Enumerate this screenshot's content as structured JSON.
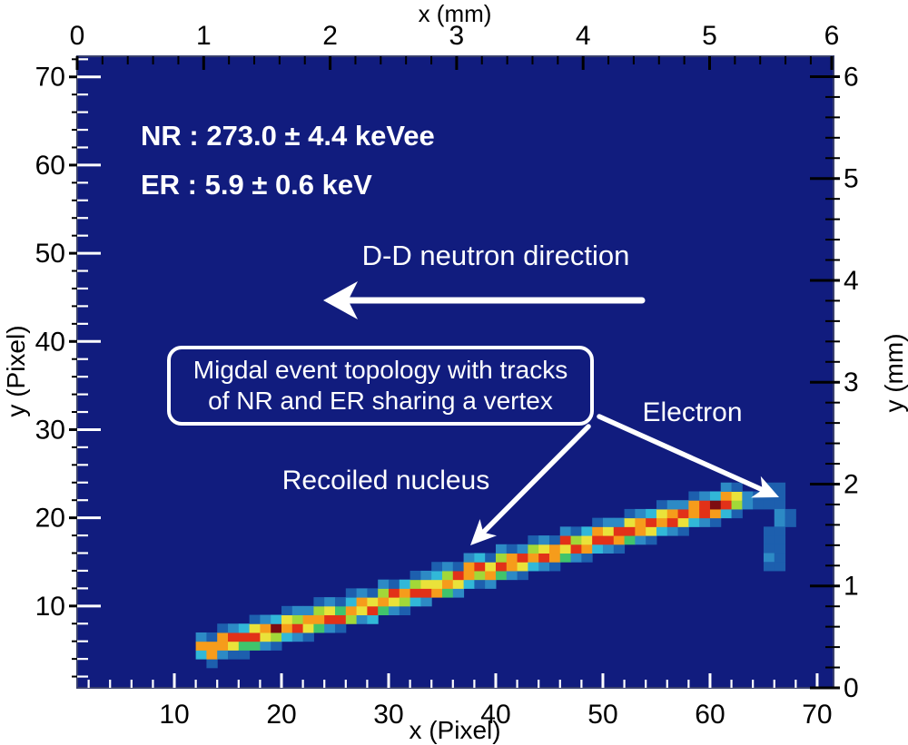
{
  "annotations": {
    "nr_energy": "NR : 273.0 ± 4.4 keVee",
    "er_energy": "ER : 5.9 ± 0.6 keV",
    "neutron_direction": "D-D neutron direction",
    "topology_line1": "Migdal event topology with tracks",
    "topology_line2": "of NR and ER sharing a vertex",
    "recoiled_nucleus": "Recoiled nucleus",
    "electron": "Electron"
  },
  "chart_data": {
    "type": "heatmap",
    "description": "CCD camera image of a Migdal-effect candidate event: a bright nuclear-recoil (NR) track and a faint electron-recoil (ER) track sharing a vertex, on a dark blue background.",
    "plot_bg": "#111c7e",
    "frame_edge": "#39406e",
    "tick_white": "#ffffff",
    "tick_black": "#000000",
    "annotation_color": "#ffffff",
    "palette": [
      "#173e96",
      "#1d5fae",
      "#2d8ac5",
      "#31b8d8",
      "#40c46c",
      "#a2d838",
      "#eae23a",
      "#f69c1b",
      "#e23118",
      "#7d0d11"
    ],
    "axes": {
      "top": {
        "title": "x (mm)",
        "majors": [
          0,
          1,
          2,
          3,
          4,
          5,
          6
        ],
        "range": [
          0,
          5.98
        ],
        "minor_step": 0.2
      },
      "bottom": {
        "title": "x (Pixel)",
        "majors": [
          10,
          20,
          30,
          40,
          50,
          60,
          70
        ],
        "range": [
          0.93,
          71.53
        ],
        "minor_step": 2
      },
      "left": {
        "title": "y (Pixel)",
        "majors": [
          10,
          20,
          30,
          40,
          50,
          60,
          70
        ],
        "range": [
          0.72,
          72.34
        ],
        "minor_step": 2
      },
      "right": {
        "title": "y (mm)",
        "majors": [
          0,
          1,
          2,
          3,
          4,
          5,
          6
        ],
        "range": [
          0,
          6.2
        ],
        "minor_step": 0.2
      }
    },
    "nr_track_columns": [
      [
        12,
        4,
        [
          4,
          8,
          3
        ]
      ],
      [
        13,
        3,
        [
          2,
          8,
          8,
          2
        ]
      ],
      [
        14,
        4,
        [
          3,
          8,
          8,
          2
        ]
      ],
      [
        15,
        4,
        [
          2,
          7,
          9,
          3
        ]
      ],
      [
        16,
        4,
        [
          2,
          5,
          9,
          4
        ]
      ],
      [
        17,
        5,
        [
          5,
          9,
          7,
          2
        ]
      ],
      [
        18,
        5,
        [
          3,
          7,
          8,
          3
        ]
      ],
      [
        19,
        5,
        [
          2,
          6,
          10,
          4
        ]
      ],
      [
        20,
        6,
        [
          4,
          8,
          7,
          2
        ]
      ],
      [
        21,
        6,
        [
          3,
          9,
          6,
          3
        ]
      ],
      [
        22,
        6,
        [
          2,
          7,
          8,
          3
        ]
      ],
      [
        23,
        7,
        [
          5,
          8,
          6,
          2
        ]
      ],
      [
        24,
        7,
        [
          3,
          9,
          7,
          3
        ]
      ],
      [
        25,
        7,
        [
          2,
          9,
          5,
          2
        ]
      ],
      [
        26,
        8,
        [
          6,
          8,
          4,
          2
        ]
      ],
      [
        27,
        8,
        [
          3,
          7,
          8,
          3
        ]
      ],
      [
        28,
        8,
        [
          4,
          9,
          7,
          2
        ]
      ],
      [
        29,
        9,
        [
          5,
          8,
          6,
          3
        ]
      ],
      [
        30,
        9,
        [
          3,
          7,
          9,
          2
        ]
      ],
      [
        31,
        9,
        [
          2,
          6,
          8,
          4
        ]
      ],
      [
        32,
        10,
        [
          4,
          9,
          6,
          2
        ]
      ],
      [
        33,
        10,
        [
          3,
          9,
          7,
          3
        ]
      ],
      [
        34,
        11,
        [
          8,
          7,
          4,
          2
        ]
      ],
      [
        35,
        11,
        [
          5,
          8,
          6,
          3
        ]
      ],
      [
        36,
        11,
        [
          3,
          7,
          9,
          2
        ]
      ],
      [
        37,
        12,
        [
          4,
          8,
          8,
          3
        ]
      ],
      [
        38,
        12,
        [
          2,
          6,
          9,
          4
        ]
      ],
      [
        39,
        12,
        [
          3,
          8,
          7,
          2
        ]
      ],
      [
        40,
        13,
        [
          5,
          9,
          6,
          3
        ]
      ],
      [
        41,
        13,
        [
          3,
          8,
          8,
          2
        ]
      ],
      [
        42,
        13,
        [
          2,
          7,
          9,
          3
        ]
      ],
      [
        43,
        14,
        [
          4,
          8,
          6,
          2
        ]
      ],
      [
        44,
        14,
        [
          3,
          9,
          7,
          3
        ]
      ],
      [
        45,
        14,
        [
          2,
          8,
          8,
          2
        ]
      ],
      [
        46,
        15,
        [
          5,
          7,
          9,
          3
        ]
      ],
      [
        47,
        15,
        [
          3,
          9,
          6,
          2
        ]
      ],
      [
        48,
        15,
        [
          2,
          8,
          7,
          4
        ]
      ],
      [
        49,
        16,
        [
          4,
          9,
          8,
          2
        ]
      ],
      [
        50,
        16,
        [
          3,
          9,
          7,
          3
        ]
      ],
      [
        51,
        16,
        [
          2,
          8,
          9,
          3
        ]
      ],
      [
        52,
        17,
        [
          5,
          9,
          7,
          2
        ]
      ],
      [
        53,
        17,
        [
          3,
          8,
          8,
          3
        ]
      ],
      [
        54,
        17,
        [
          2,
          7,
          9,
          4
        ]
      ],
      [
        55,
        18,
        [
          4,
          8,
          7,
          2
        ]
      ],
      [
        56,
        18,
        [
          3,
          9,
          8,
          3
        ]
      ],
      [
        57,
        18,
        [
          2,
          7,
          9,
          3
        ]
      ],
      [
        58,
        19,
        [
          4,
          8,
          8,
          2
        ]
      ],
      [
        59,
        19,
        [
          3,
          9,
          9,
          3
        ]
      ],
      [
        60,
        19,
        [
          2,
          8,
          10,
          4
        ]
      ],
      [
        61,
        20,
        [
          4,
          9,
          8,
          3
        ]
      ],
      [
        62,
        20,
        [
          2,
          6,
          7,
          2
        ]
      ],
      [
        63,
        21,
        [
          3,
          3
        ]
      ]
    ],
    "electron_cells": [
      [
        64,
        22,
        2
      ],
      [
        64,
        21,
        2
      ],
      [
        65,
        23,
        2
      ],
      [
        66,
        23,
        2
      ],
      [
        65,
        22,
        2
      ],
      [
        66,
        22,
        2
      ],
      [
        65,
        21,
        2
      ],
      [
        66,
        21,
        2
      ],
      [
        66,
        20,
        3
      ],
      [
        67,
        20,
        2
      ],
      [
        66,
        19,
        3
      ],
      [
        67,
        19,
        2
      ],
      [
        65,
        18,
        2
      ],
      [
        66,
        18,
        2
      ],
      [
        65,
        17,
        2
      ],
      [
        66,
        17,
        2
      ],
      [
        65,
        16,
        2
      ],
      [
        66,
        16,
        2
      ],
      [
        65,
        15,
        3
      ],
      [
        66,
        15,
        2
      ],
      [
        65,
        14,
        2
      ],
      [
        66,
        14,
        2
      ]
    ]
  }
}
